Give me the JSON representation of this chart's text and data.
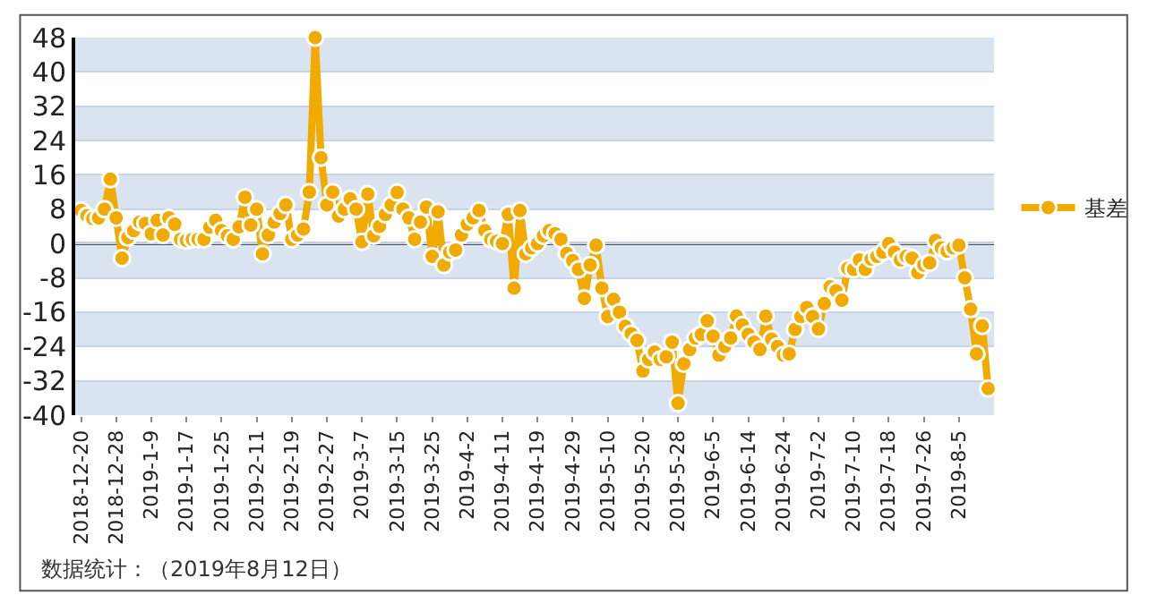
{
  "chart_data": {
    "type": "line",
    "categories": [
      "2018-12-20",
      null,
      null,
      null,
      null,
      null,
      "2018-12-28",
      null,
      null,
      null,
      null,
      null,
      "2019-1-9",
      null,
      null,
      null,
      null,
      null,
      "2019-1-17",
      null,
      null,
      null,
      null,
      null,
      "2019-1-25",
      null,
      null,
      null,
      null,
      null,
      "2019-2-11",
      null,
      null,
      null,
      null,
      null,
      "2019-2-19",
      null,
      null,
      null,
      null,
      null,
      "2019-2-27",
      null,
      null,
      null,
      null,
      null,
      "2019-3-7",
      null,
      null,
      null,
      null,
      null,
      "2019-3-15",
      null,
      null,
      null,
      null,
      null,
      "2019-3-25",
      null,
      null,
      null,
      null,
      null,
      "2019-4-2",
      null,
      null,
      null,
      null,
      null,
      "2019-4-11",
      null,
      null,
      null,
      null,
      null,
      "2019-4-19",
      null,
      null,
      null,
      null,
      null,
      "2019-4-29",
      null,
      null,
      null,
      null,
      null,
      "2019-5-10",
      null,
      null,
      null,
      null,
      null,
      "2019-5-20",
      null,
      null,
      null,
      null,
      null,
      "2019-5-28",
      null,
      null,
      null,
      null,
      null,
      "2019-6-5",
      null,
      null,
      null,
      null,
      null,
      "2019-6-14",
      null,
      null,
      null,
      null,
      null,
      "2019-6-24",
      null,
      null,
      null,
      null,
      null,
      "2019-7-2",
      null,
      null,
      null,
      null,
      null,
      "2019-7-10",
      null,
      null,
      null,
      null,
      null,
      "2019-7-18",
      null,
      null,
      null,
      null,
      null,
      "2019-7-26",
      null,
      null,
      null,
      null,
      null,
      "2019-8-5",
      null,
      null,
      null,
      null,
      null
    ],
    "series": [
      {
        "name": "基差",
        "color": "#f0aa00",
        "values": [
          7.7,
          6.5,
          5.8,
          6,
          8,
          15,
          6,
          -3.4,
          1.4,
          3,
          5,
          4.7,
          2.3,
          5.4,
          2,
          6,
          4.5,
          1,
          0.7,
          1,
          1,
          1,
          3.8,
          5.4,
          3,
          1.8,
          1,
          3.9,
          10.8,
          4.3,
          8,
          -2.4,
          2,
          5,
          7,
          9,
          1,
          2,
          3.4,
          12,
          48,
          20,
          9,
          12,
          6.4,
          8,
          10.4,
          8,
          0.4,
          11.5,
          1.8,
          4,
          6.8,
          9,
          11.9,
          8,
          6,
          1,
          5,
          8.5,
          -3,
          7.4,
          -5,
          -2,
          -1.5,
          2,
          4.5,
          6,
          7.7,
          3,
          1,
          0.5,
          0,
          6.8,
          -10.4,
          7.7,
          -2.4,
          -1,
          0,
          1.8,
          3,
          2.3,
          1,
          -2.3,
          -4,
          -6,
          -12.8,
          -5,
          -0.4,
          -10.4,
          -17,
          -13,
          -16,
          -19.3,
          -21,
          -22.6,
          -29.7,
          -27,
          -25.3,
          -27,
          -26.4,
          -23,
          -37.2,
          -28,
          -24.7,
          -22,
          -21.2,
          -18,
          -21.6,
          -26,
          -24,
          -22,
          -16.9,
          -19,
          -21.2,
          -23,
          -24.7,
          -16.9,
          -22.3,
          -24,
          -26,
          -25.7,
          -20,
          -17,
          -14.9,
          -17,
          -19.9,
          -14,
          -10.1,
          -11,
          -13.2,
          -5.8,
          -6,
          -3.8,
          -6,
          -3.6,
          -3,
          -2,
          0,
          -2,
          -3.8,
          -3,
          -3.4,
          -6.8,
          -5,
          -4.5,
          0.7,
          -1,
          -1.8,
          -1,
          -0.4,
          -8,
          -15.3,
          -25.7,
          -19.2,
          -33.8
        ]
      }
    ],
    "ylim": [
      -40,
      48
    ],
    "yticks": [
      -40,
      -32,
      -24,
      -16,
      -8,
      0,
      8,
      16,
      24,
      32,
      40,
      48
    ],
    "ref_lines": [
      {
        "axis": "y",
        "value": 0,
        "color": "#222222"
      }
    ],
    "grid": "y",
    "legend": "right",
    "marker": "circle",
    "line_style": "solid",
    "annotations": [
      "数据统计：（2019年8月12日）"
    ]
  }
}
